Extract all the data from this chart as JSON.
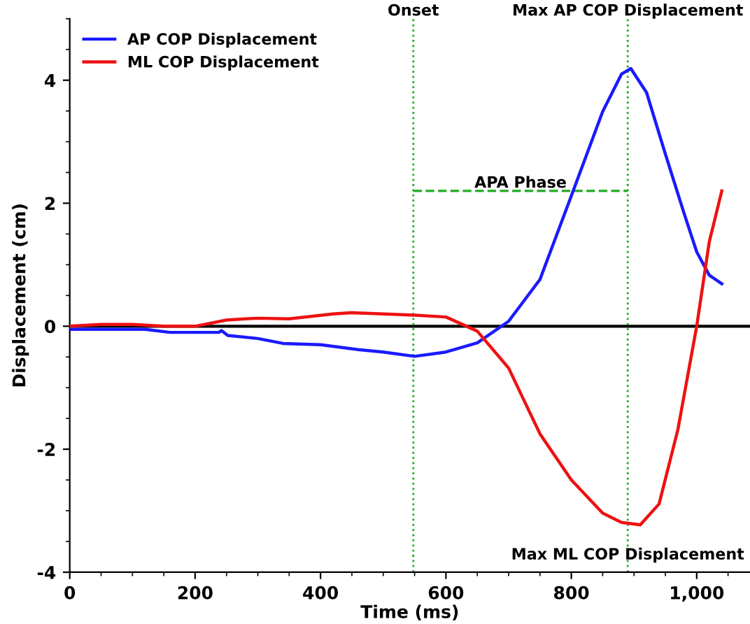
{
  "chart_data": {
    "type": "line",
    "xlabel": "Time (ms)",
    "ylabel": "Displacement (cm)",
    "xlim": [
      0,
      1085
    ],
    "ylim": [
      -4,
      5
    ],
    "xticks": [
      0,
      200,
      400,
      600,
      800,
      {
        "value": 1000,
        "label": "1,000"
      }
    ],
    "yticks": [
      -4,
      -2,
      0,
      2,
      4
    ],
    "grid": false,
    "legend": "top left",
    "marker": "none",
    "line_style": "solid",
    "series": [
      {
        "name": "AP COP Displacement",
        "color": "#1a1aff",
        "x": [
          0,
          120,
          160,
          238,
          242,
          252,
          300,
          340,
          400,
          460,
          500,
          550,
          600,
          650,
          700,
          750,
          800,
          850,
          880,
          895,
          920,
          950,
          980,
          1000,
          1020,
          1040
        ],
        "values": [
          -0.05,
          -0.05,
          -0.1,
          -0.1,
          -0.07,
          -0.15,
          -0.2,
          -0.28,
          -0.3,
          -0.38,
          -0.42,
          -0.49,
          -0.42,
          -0.27,
          0.08,
          0.76,
          2.12,
          3.49,
          4.1,
          4.19,
          3.8,
          2.8,
          1.83,
          1.21,
          0.83,
          0.69
        ]
      },
      {
        "name": "ML COP Displacement",
        "color": "#ee1111",
        "x": [
          0,
          50,
          100,
          150,
          200,
          250,
          280,
          300,
          350,
          420,
          450,
          500,
          550,
          600,
          650,
          700,
          750,
          800,
          850,
          880,
          910,
          940,
          970,
          1000,
          1020,
          1040
        ],
        "values": [
          0,
          0.03,
          0.03,
          0,
          0,
          0.1,
          0.12,
          0.13,
          0.12,
          0.2,
          0.22,
          0.2,
          0.18,
          0.15,
          -0.08,
          -0.68,
          -1.75,
          -2.5,
          -3.04,
          -3.19,
          -3.23,
          -2.89,
          -1.68,
          0,
          1.37,
          2.2
        ]
      },
      {
        "color": "#22aa22",
        "line_style": "dashed",
        "x": [
          548,
          890
        ],
        "values": [
          2.2,
          2.2
        ]
      }
    ],
    "ref_lines": [
      {
        "axis": "y",
        "value": 0,
        "color": "#000000",
        "line_style": "solid"
      },
      {
        "axis": "x",
        "value": 548,
        "label": "Onset",
        "color": "#22aa22",
        "line_style": "dotted"
      },
      {
        "axis": "x",
        "value": 890,
        "label": "Max AP COP Displacement",
        "color": "#22aa22",
        "line_style": "dotted"
      }
    ],
    "annotations": [
      "APA Phase",
      {
        "text": "Max ML COP Displacement",
        "x": 890,
        "y": -3.6
      }
    ]
  }
}
